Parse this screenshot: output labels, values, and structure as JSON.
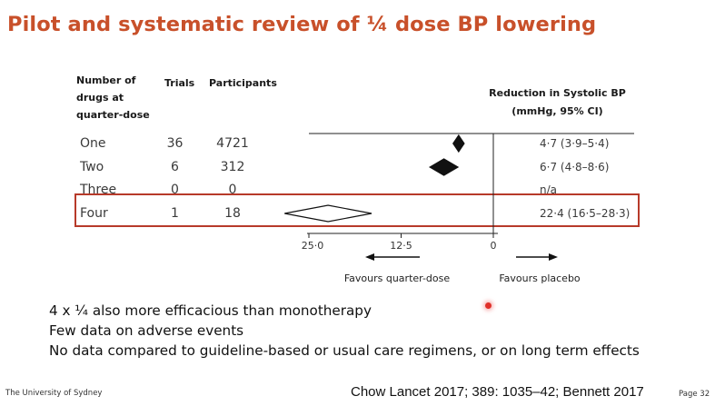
{
  "slide": {
    "title": "Pilot and systematic review of ¼ dose BP lowering",
    "bullets": [
      "4 x ¼ also more efficacious than monotherapy",
      "Few data on adverse events",
      "No data compared to guideline-based or usual care regimens, or on long term effects"
    ],
    "footer_left": "The University of Sydney",
    "citation": "Chow Lancet 2017; 389: 1035–42; Bennett 2017",
    "page_number": "Page 32"
  },
  "colors": {
    "title": "#c8502a",
    "highlight_box": "#b73a2a",
    "pointer_dot": "#e0302a"
  },
  "chart_data": {
    "type": "forest",
    "headers": {
      "drugs": "Number of drugs at quarter-dose",
      "trials": "Trials",
      "participants": "Participants",
      "estimate": "Reduction in Systolic BP (mmHg, 95% CI)"
    },
    "rows": [
      {
        "label": "One",
        "trials": "36",
        "participants": "4721",
        "estimate_text": "4·7 (3·9–5·4)",
        "est": 4.7,
        "lo": 3.9,
        "hi": 5.4,
        "highlighted": false
      },
      {
        "label": "Two",
        "trials": "6",
        "participants": "312",
        "estimate_text": "6·7 (4·8–8·6)",
        "est": 6.7,
        "lo": 4.8,
        "hi": 8.6,
        "highlighted": false
      },
      {
        "label": "Three",
        "trials": "0",
        "participants": "0",
        "estimate_text": "n/a",
        "est": null,
        "lo": null,
        "hi": null,
        "highlighted": false
      },
      {
        "label": "Four",
        "trials": "1",
        "participants": "18",
        "estimate_text": "22·4 (16·5–28·3)",
        "est": 22.4,
        "lo": 16.5,
        "hi": 28.3,
        "highlighted": true
      }
    ],
    "x_ticks": [
      "25·0",
      "12·5",
      "0"
    ],
    "x_tick_values": [
      25,
      12.5,
      0
    ],
    "xlim": [
      25,
      0
    ],
    "favours_left": "Favours quarter-dose",
    "favours_right": "Favours placebo"
  }
}
